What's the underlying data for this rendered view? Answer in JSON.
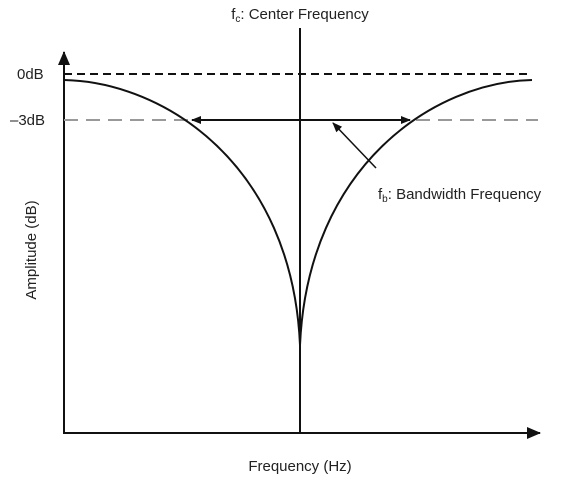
{
  "labels": {
    "center": {
      "main": "f",
      "sub": "c",
      "rest": ": Center Frequency"
    },
    "bandwidth": {
      "main": "f",
      "sub": "b",
      "rest": ": Bandwidth Frequency"
    },
    "zero_db": "0dB",
    "minus3_db": "–3dB",
    "y_axis": "Amplitude (dB)",
    "x_axis": "Frequency (Hz)"
  }
}
